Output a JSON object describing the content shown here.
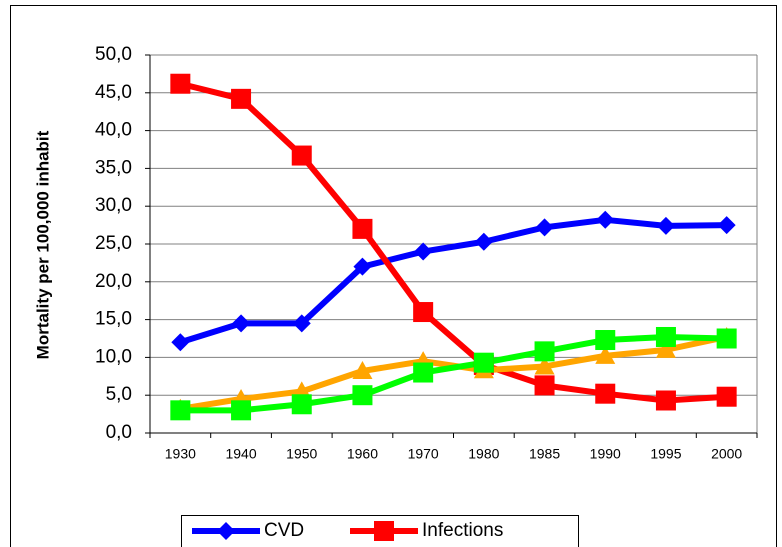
{
  "chart_data": {
    "type": "line",
    "ylabel": "Mortality per 100,000 inhabit",
    "categories": [
      "1930",
      "1940",
      "1950",
      "1960",
      "1970",
      "1980",
      "1985",
      "1990",
      "1995",
      "2000"
    ],
    "series": [
      {
        "name": "CVD",
        "color": "#0000ff",
        "marker": "diamond",
        "values": [
          12.0,
          14.5,
          14.5,
          22.0,
          24.0,
          25.3,
          27.2,
          28.2,
          27.4,
          27.5
        ]
      },
      {
        "name": "Infections",
        "color": "#ff0000",
        "marker": "square",
        "values": [
          46.2,
          44.2,
          36.7,
          27.0,
          16.0,
          9.0,
          6.3,
          5.2,
          4.3,
          4.8
        ]
      },
      {
        "color": "#ffa500",
        "marker": "triangle",
        "values": [
          3.2,
          4.5,
          5.5,
          8.2,
          9.5,
          8.3,
          8.8,
          10.2,
          11.0,
          12.7
        ]
      },
      {
        "color": "#00ff00",
        "marker": "square",
        "values": [
          3.0,
          3.0,
          3.8,
          5.0,
          8.0,
          9.3,
          10.8,
          12.3,
          12.7,
          12.5
        ]
      }
    ],
    "ylim": [
      0,
      50
    ],
    "yticks": [
      {
        "value": 0,
        "label": "0,0"
      },
      {
        "value": 5,
        "label": "5,0"
      },
      {
        "value": 10,
        "label": "10,0"
      },
      {
        "value": 15,
        "label": "15,0"
      },
      {
        "value": 20,
        "label": "20,0"
      },
      {
        "value": 25,
        "label": "25,0"
      },
      {
        "value": 30,
        "label": "30,0"
      },
      {
        "value": 35,
        "label": "35,0"
      },
      {
        "value": 40,
        "label": "40,0"
      },
      {
        "value": 45,
        "label": "45,0"
      },
      {
        "value": 50,
        "label": "50,0"
      }
    ],
    "grid": true
  }
}
